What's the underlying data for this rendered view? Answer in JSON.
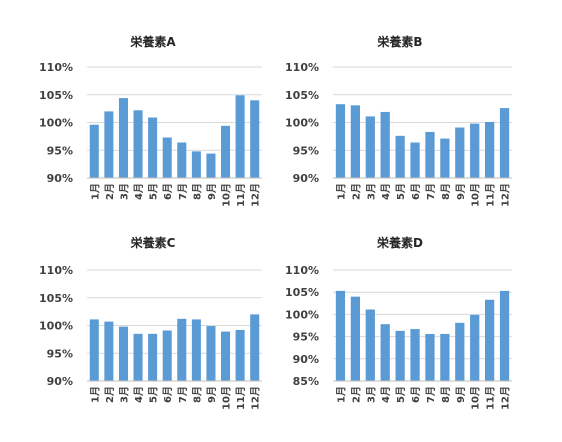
{
  "colors": {
    "bar": "#5b9bd5",
    "grid": "#d9d9d9",
    "axis": "#bfbfbf",
    "text": "#404040"
  },
  "chart_data": [
    {
      "type": "bar",
      "title": "栄養素A",
      "categories": [
        "1月",
        "2月",
        "3月",
        "4月",
        "5月",
        "6月",
        "7月",
        "8月",
        "9月",
        "10月",
        "11月",
        "12月"
      ],
      "values": [
        99.6,
        102.0,
        104.4,
        102.2,
        100.9,
        97.3,
        96.4,
        94.8,
        94.4,
        99.4,
        104.9,
        104.0
      ],
      "ylim": [
        90,
        110
      ],
      "yticks": [
        90,
        95,
        100,
        105,
        110
      ],
      "ytick_labels": [
        "90%",
        "95%",
        "100%",
        "105%",
        "110%"
      ],
      "grid": true,
      "legend": "none"
    },
    {
      "type": "bar",
      "title": "栄養素B",
      "categories": [
        "1月",
        "2月",
        "3月",
        "4月",
        "5月",
        "6月",
        "7月",
        "8月",
        "9月",
        "10月",
        "11月",
        "12月"
      ],
      "values": [
        103.3,
        103.1,
        101.1,
        101.9,
        97.6,
        96.4,
        98.3,
        97.1,
        99.1,
        99.8,
        100.1,
        102.6
      ],
      "ylim": [
        90,
        110
      ],
      "yticks": [
        90,
        95,
        100,
        105,
        110
      ],
      "ytick_labels": [
        "90%",
        "95%",
        "100%",
        "105%",
        "110%"
      ],
      "grid": true,
      "legend": "none"
    },
    {
      "type": "bar",
      "title": "栄養素C",
      "categories": [
        "1月",
        "2月",
        "3月",
        "4月",
        "5月",
        "6月",
        "7月",
        "8月",
        "9月",
        "10月",
        "11月",
        "12月"
      ],
      "values": [
        101.1,
        100.7,
        99.8,
        98.5,
        98.5,
        99.1,
        101.2,
        101.1,
        99.9,
        98.9,
        99.2,
        102.0
      ],
      "ylim": [
        90,
        110
      ],
      "yticks": [
        90,
        95,
        100,
        105,
        110
      ],
      "ytick_labels": [
        "90%",
        "95%",
        "100%",
        "105%",
        "110%"
      ],
      "grid": true,
      "legend": "none"
    },
    {
      "type": "bar",
      "title": "栄養素D",
      "categories": [
        "1月",
        "2月",
        "3月",
        "4月",
        "5月",
        "6月",
        "7月",
        "8月",
        "9月",
        "10月",
        "11月",
        "12月"
      ],
      "values": [
        105.3,
        104.0,
        101.1,
        97.8,
        96.3,
        96.7,
        95.6,
        95.6,
        98.1,
        99.9,
        103.3,
        105.3
      ],
      "ylim": [
        85,
        110
      ],
      "yticks": [
        85,
        90,
        95,
        100,
        105,
        110
      ],
      "ytick_labels": [
        "85%",
        "90%",
        "95%",
        "100%",
        "105%",
        "110%"
      ],
      "grid": true,
      "legend": "none"
    }
  ]
}
